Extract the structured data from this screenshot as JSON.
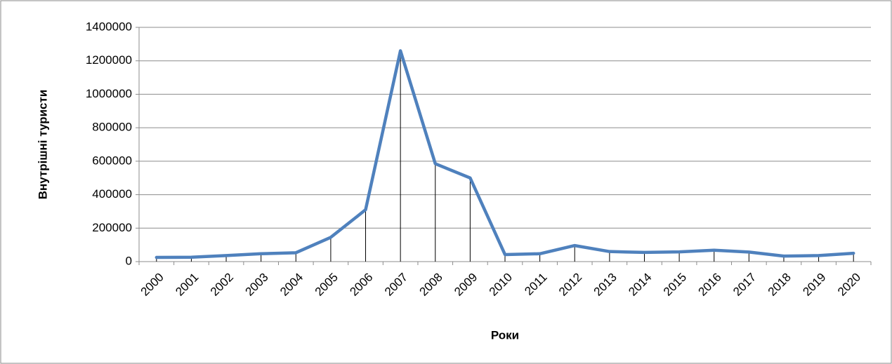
{
  "chart_data": {
    "type": "line",
    "x_label": "Роки",
    "y_label": "Внутрішні туристи",
    "categories": [
      "2000",
      "2001",
      "2002",
      "2003",
      "2004",
      "2005",
      "2006",
      "2007",
      "2008",
      "2009",
      "2010",
      "2011",
      "2012",
      "2013",
      "2014",
      "2015",
      "2016",
      "2017",
      "2018",
      "2019",
      "2020"
    ],
    "series": [
      {
        "name": "Внутрішні туристи",
        "color": "#4f81bd",
        "values": [
          25000,
          26000,
          36000,
          47000,
          53000,
          145000,
          310000,
          1260000,
          585000,
          500000,
          42000,
          47000,
          96000,
          60000,
          55000,
          58000,
          68000,
          57000,
          33000,
          36000,
          50000
        ]
      }
    ],
    "ylim": [
      0,
      1400000
    ],
    "yticks": [
      0,
      200000,
      400000,
      600000,
      800000,
      1000000,
      1200000,
      1400000
    ],
    "grid": true,
    "drop_lines": true
  }
}
